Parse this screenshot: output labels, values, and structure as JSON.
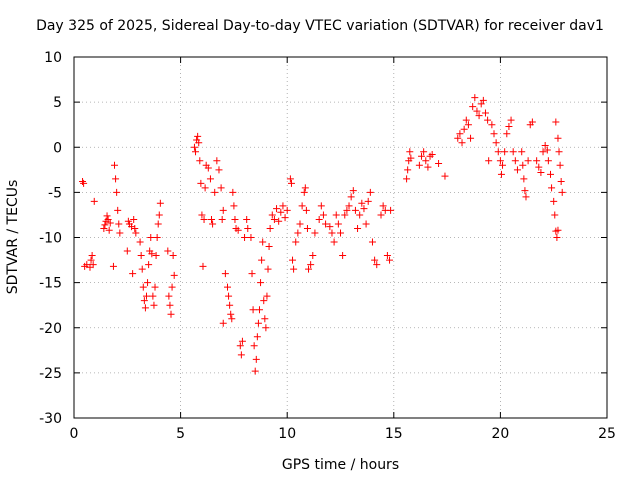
{
  "chart_data": {
    "type": "scatter",
    "title": "Day 325 of 2025, Sidereal Day-to-day VTEC variation (SDTVAR) for receiver dav1",
    "xlabel": "GPS time / hours",
    "ylabel": "SDTVAR / TECUs",
    "xlim": [
      0,
      25
    ],
    "ylim": [
      -30,
      10
    ],
    "xticks": [
      0,
      5,
      10,
      15,
      20,
      25
    ],
    "yticks": [
      -30,
      -25,
      -20,
      -15,
      -10,
      -5,
      0,
      5,
      10
    ],
    "grid": true,
    "marker": "+",
    "color": "#ff0000",
    "series": [
      {
        "name": "SDTVAR",
        "points": [
          [
            0.4,
            -3.8
          ],
          [
            0.45,
            -4.0
          ],
          [
            0.5,
            -13.2
          ],
          [
            0.6,
            -13.0
          ],
          [
            0.75,
            -13.3
          ],
          [
            0.8,
            -12.5
          ],
          [
            0.85,
            -12.0
          ],
          [
            0.9,
            -13.0
          ],
          [
            0.95,
            -6.0
          ],
          [
            1.4,
            -9.0
          ],
          [
            1.45,
            -8.6
          ],
          [
            1.5,
            -8.2
          ],
          [
            1.55,
            -7.6
          ],
          [
            1.6,
            -8.0
          ],
          [
            1.65,
            -9.2
          ],
          [
            1.7,
            -8.4
          ],
          [
            1.85,
            -13.2
          ],
          [
            1.9,
            -2.0
          ],
          [
            1.95,
            -3.5
          ],
          [
            2.0,
            -5.0
          ],
          [
            2.05,
            -7.0
          ],
          [
            2.1,
            -8.5
          ],
          [
            2.15,
            -9.5
          ],
          [
            2.5,
            -11.5
          ],
          [
            2.55,
            -8.2
          ],
          [
            2.6,
            -8.5
          ],
          [
            2.7,
            -8.8
          ],
          [
            2.75,
            -14.0
          ],
          [
            2.8,
            -8.0
          ],
          [
            2.85,
            -9.0
          ],
          [
            2.9,
            -9.5
          ],
          [
            3.1,
            -10.5
          ],
          [
            3.15,
            -12.0
          ],
          [
            3.2,
            -13.5
          ],
          [
            3.25,
            -15.5
          ],
          [
            3.3,
            -17.0
          ],
          [
            3.35,
            -17.8
          ],
          [
            3.4,
            -16.5
          ],
          [
            3.45,
            -15.0
          ],
          [
            3.5,
            -13.0
          ],
          [
            3.55,
            -11.5
          ],
          [
            3.6,
            -10.0
          ],
          [
            3.65,
            -11.8
          ],
          [
            3.7,
            -16.5
          ],
          [
            3.75,
            -17.5
          ],
          [
            3.8,
            -15.5
          ],
          [
            3.85,
            -12.0
          ],
          [
            3.9,
            -10.0
          ],
          [
            3.95,
            -8.5
          ],
          [
            4.0,
            -7.5
          ],
          [
            4.05,
            -6.2
          ],
          [
            4.4,
            -11.5
          ],
          [
            4.45,
            -16.5
          ],
          [
            4.5,
            -17.5
          ],
          [
            4.55,
            -18.5
          ],
          [
            4.6,
            -15.5
          ],
          [
            4.65,
            -12.0
          ],
          [
            4.7,
            -14.2
          ],
          [
            5.65,
            0.0
          ],
          [
            5.7,
            -0.5
          ],
          [
            5.75,
            0.8
          ],
          [
            5.8,
            1.2
          ],
          [
            5.85,
            0.5
          ],
          [
            5.9,
            -1.5
          ],
          [
            5.95,
            -4.0
          ],
          [
            6.0,
            -7.5
          ],
          [
            6.05,
            -13.2
          ],
          [
            6.1,
            -8.0
          ],
          [
            6.15,
            -4.5
          ],
          [
            6.2,
            -2.0
          ],
          [
            6.3,
            -2.3
          ],
          [
            6.4,
            -3.5
          ],
          [
            6.45,
            -8.0
          ],
          [
            6.5,
            -8.5
          ],
          [
            6.6,
            -5.0
          ],
          [
            6.7,
            -1.5
          ],
          [
            6.8,
            -2.5
          ],
          [
            6.9,
            -4.5
          ],
          [
            6.95,
            -8.0
          ],
          [
            7.0,
            -7.0
          ],
          [
            7.0,
            -19.5
          ],
          [
            7.1,
            -14.0
          ],
          [
            7.2,
            -15.5
          ],
          [
            7.25,
            -16.5
          ],
          [
            7.3,
            -17.5
          ],
          [
            7.35,
            -18.5
          ],
          [
            7.4,
            -19.0
          ],
          [
            7.45,
            -5.0
          ],
          [
            7.5,
            -6.5
          ],
          [
            7.55,
            -8.0
          ],
          [
            7.6,
            -9.0
          ],
          [
            7.7,
            -9.2
          ],
          [
            7.8,
            -22.0
          ],
          [
            7.85,
            -23.0
          ],
          [
            7.9,
            -21.5
          ],
          [
            8.0,
            -10.0
          ],
          [
            8.1,
            -8.0
          ],
          [
            8.15,
            -9.0
          ],
          [
            8.3,
            -10.0
          ],
          [
            8.35,
            -14.0
          ],
          [
            8.4,
            -18.0
          ],
          [
            8.45,
            -22.0
          ],
          [
            8.5,
            -24.8
          ],
          [
            8.55,
            -23.5
          ],
          [
            8.6,
            -21.0
          ],
          [
            8.65,
            -19.5
          ],
          [
            8.7,
            -18.0
          ],
          [
            8.75,
            -15.0
          ],
          [
            8.8,
            -12.5
          ],
          [
            8.85,
            -10.5
          ],
          [
            8.9,
            -17.0
          ],
          [
            8.95,
            -19.0
          ],
          [
            9.0,
            -20.0
          ],
          [
            9.05,
            -16.5
          ],
          [
            9.1,
            -13.5
          ],
          [
            9.15,
            -11.0
          ],
          [
            9.2,
            -9.0
          ],
          [
            9.3,
            -7.5
          ],
          [
            9.4,
            -8.0
          ],
          [
            9.5,
            -6.8
          ],
          [
            9.6,
            -8.2
          ],
          [
            9.7,
            -7.2
          ],
          [
            9.8,
            -6.5
          ],
          [
            9.9,
            -7.8
          ],
          [
            10.0,
            -7.0
          ],
          [
            10.15,
            -3.5
          ],
          [
            10.2,
            -4.0
          ],
          [
            10.25,
            -12.5
          ],
          [
            10.3,
            -13.5
          ],
          [
            10.4,
            -10.5
          ],
          [
            10.5,
            -9.5
          ],
          [
            10.6,
            -8.5
          ],
          [
            10.7,
            -6.5
          ],
          [
            10.8,
            -5.0
          ],
          [
            10.85,
            -4.5
          ],
          [
            10.9,
            -7.0
          ],
          [
            10.95,
            -9.0
          ],
          [
            11.0,
            -13.5
          ],
          [
            11.1,
            -13.0
          ],
          [
            11.2,
            -12.0
          ],
          [
            11.3,
            -9.5
          ],
          [
            11.5,
            -8.0
          ],
          [
            11.6,
            -6.5
          ],
          [
            11.7,
            -7.5
          ],
          [
            11.8,
            -8.5
          ],
          [
            12.0,
            -8.8
          ],
          [
            12.1,
            -9.5
          ],
          [
            12.2,
            -10.5
          ],
          [
            12.3,
            -7.5
          ],
          [
            12.4,
            -8.5
          ],
          [
            12.5,
            -9.5
          ],
          [
            12.6,
            -12.0
          ],
          [
            12.7,
            -7.5
          ],
          [
            12.8,
            -7.0
          ],
          [
            12.9,
            -6.5
          ],
          [
            13.0,
            -5.5
          ],
          [
            13.1,
            -4.8
          ],
          [
            13.2,
            -7.0
          ],
          [
            13.3,
            -9.0
          ],
          [
            13.4,
            -7.5
          ],
          [
            13.5,
            -6.2
          ],
          [
            13.6,
            -6.8
          ],
          [
            13.7,
            -8.5
          ],
          [
            13.8,
            -6.0
          ],
          [
            13.9,
            -5.0
          ],
          [
            14.0,
            -10.5
          ],
          [
            14.1,
            -12.5
          ],
          [
            14.2,
            -13.0
          ],
          [
            14.4,
            -7.5
          ],
          [
            14.5,
            -6.5
          ],
          [
            14.6,
            -7.0
          ],
          [
            14.7,
            -12.0
          ],
          [
            14.8,
            -12.5
          ],
          [
            14.85,
            -7.0
          ],
          [
            15.6,
            -3.5
          ],
          [
            15.65,
            -2.5
          ],
          [
            15.7,
            -1.5
          ],
          [
            15.75,
            -0.5
          ],
          [
            15.8,
            -1.2
          ],
          [
            16.2,
            -2.0
          ],
          [
            16.3,
            -1.0
          ],
          [
            16.4,
            -0.5
          ],
          [
            16.5,
            -1.5
          ],
          [
            16.6,
            -2.2
          ],
          [
            16.7,
            -1.0
          ],
          [
            16.8,
            -0.8
          ],
          [
            17.1,
            -1.8
          ],
          [
            17.4,
            -3.2
          ],
          [
            18.0,
            1.0
          ],
          [
            18.1,
            1.5
          ],
          [
            18.2,
            0.5
          ],
          [
            18.3,
            2.0
          ],
          [
            18.4,
            3.0
          ],
          [
            18.5,
            2.5
          ],
          [
            18.6,
            1.0
          ],
          [
            18.7,
            4.5
          ],
          [
            18.8,
            5.5
          ],
          [
            18.9,
            4.0
          ],
          [
            19.0,
            3.5
          ],
          [
            19.1,
            4.8
          ],
          [
            19.2,
            5.2
          ],
          [
            19.3,
            3.8
          ],
          [
            19.4,
            3.0
          ],
          [
            19.45,
            -1.5
          ],
          [
            19.6,
            2.5
          ],
          [
            19.7,
            1.5
          ],
          [
            19.8,
            0.5
          ],
          [
            19.9,
            -0.5
          ],
          [
            20.0,
            -1.5
          ],
          [
            20.05,
            -3.0
          ],
          [
            20.1,
            -2.0
          ],
          [
            20.2,
            -0.5
          ],
          [
            20.3,
            1.5
          ],
          [
            20.4,
            2.3
          ],
          [
            20.5,
            3.0
          ],
          [
            20.6,
            -0.5
          ],
          [
            20.7,
            -1.5
          ],
          [
            20.8,
            -2.5
          ],
          [
            21.0,
            -0.5
          ],
          [
            21.05,
            -2.0
          ],
          [
            21.1,
            -3.5
          ],
          [
            21.15,
            -4.8
          ],
          [
            21.2,
            -5.5
          ],
          [
            21.3,
            -1.5
          ],
          [
            21.4,
            2.5
          ],
          [
            21.5,
            2.8
          ],
          [
            21.7,
            -1.5
          ],
          [
            21.8,
            -2.2
          ],
          [
            21.9,
            -2.8
          ],
          [
            22.0,
            -0.5
          ],
          [
            22.1,
            0.2
          ],
          [
            22.2,
            -0.3
          ],
          [
            22.25,
            -1.5
          ],
          [
            22.35,
            -3.0
          ],
          [
            22.4,
            -4.5
          ],
          [
            22.5,
            -6.0
          ],
          [
            22.55,
            -7.5
          ],
          [
            22.6,
            -9.3
          ],
          [
            22.65,
            -10.0
          ],
          [
            22.7,
            -9.2
          ],
          [
            22.6,
            2.8
          ],
          [
            22.7,
            1.0
          ],
          [
            22.75,
            -0.5
          ],
          [
            22.8,
            -2.0
          ],
          [
            22.85,
            -3.8
          ],
          [
            22.9,
            -5.0
          ]
        ]
      }
    ]
  }
}
